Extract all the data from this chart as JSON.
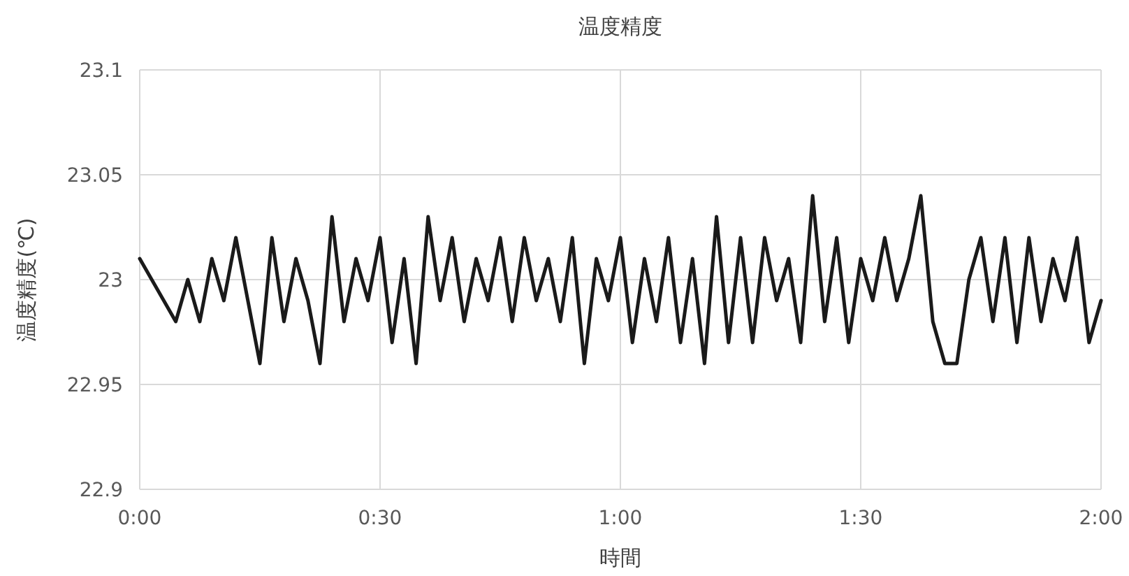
{
  "chart_data": {
    "type": "line",
    "title": "温度精度",
    "xlabel": "時間",
    "ylabel": "温度精度(℃)",
    "x": [
      0,
      0.025,
      0.05,
      0.075,
      0.1,
      0.125,
      0.15,
      0.175,
      0.2,
      0.225,
      0.25,
      0.275,
      0.3,
      0.325,
      0.35,
      0.375,
      0.4,
      0.425,
      0.45,
      0.475,
      0.5,
      0.525,
      0.55,
      0.575,
      0.6,
      0.625,
      0.65,
      0.675,
      0.7,
      0.725,
      0.75,
      0.775,
      0.8,
      0.825,
      0.85,
      0.875,
      0.9,
      0.925,
      0.95,
      0.975,
      1,
      1.025,
      1.05,
      1.075,
      1.1,
      1.125,
      1.15,
      1.175,
      1.2,
      1.225,
      1.25,
      1.275,
      1.3,
      1.325,
      1.35,
      1.375,
      1.4,
      1.425,
      1.45,
      1.475,
      1.5,
      1.525,
      1.55,
      1.575,
      1.6,
      1.625,
      1.65,
      1.675,
      1.7,
      1.725,
      1.75,
      1.775,
      1.8,
      1.825,
      1.85,
      1.875,
      1.9,
      1.925,
      1.95,
      1.975,
      2
    ],
    "series": [
      {
        "color": "#1a1a1a",
        "values": [
          23.01,
          23.0,
          22.99,
          22.98,
          23.0,
          22.98,
          23.01,
          22.99,
          23.02,
          22.99,
          22.96,
          23.02,
          22.98,
          23.01,
          22.99,
          22.96,
          23.03,
          22.98,
          23.01,
          22.99,
          23.02,
          22.97,
          23.01,
          22.96,
          23.03,
          22.99,
          23.02,
          22.98,
          23.01,
          22.99,
          23.02,
          22.98,
          23.02,
          22.99,
          23.01,
          22.98,
          23.02,
          22.96,
          23.01,
          22.99,
          23.02,
          22.97,
          23.01,
          22.98,
          23.02,
          22.97,
          23.01,
          22.96,
          23.03,
          22.97,
          23.02,
          22.97,
          23.02,
          22.99,
          23.01,
          22.97,
          23.04,
          22.98,
          23.02,
          22.97,
          23.01,
          22.99,
          23.02,
          22.99,
          23.01,
          23.04,
          22.98,
          22.96,
          22.96,
          23.0,
          23.02,
          22.98,
          23.02,
          22.97,
          23.02,
          22.98,
          23.01,
          22.99,
          23.02,
          22.97,
          22.99
        ]
      }
    ],
    "xlim": [
      0,
      2
    ],
    "ylim": [
      22.9,
      23.1
    ],
    "xticks": [
      {
        "value": 0,
        "label": "0:00"
      },
      {
        "value": 0.5,
        "label": "0:30"
      },
      {
        "value": 1,
        "label": "1:00"
      },
      {
        "value": 1.5,
        "label": "1:30"
      },
      {
        "value": 2,
        "label": "2:00"
      }
    ],
    "yticks": [
      22.9,
      22.95,
      23,
      23.05,
      23.1
    ],
    "grid": true,
    "marker": "none",
    "line_style": "solid"
  }
}
